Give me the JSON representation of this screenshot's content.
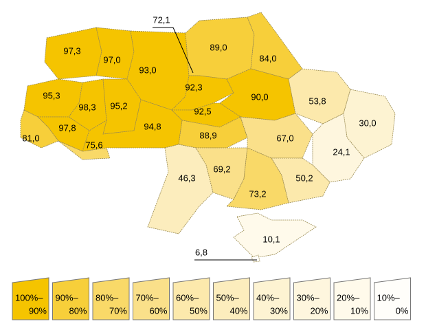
{
  "map": {
    "regions": [
      {
        "label": "97,3",
        "color": "#f5c400"
      },
      {
        "label": "97,0",
        "color": "#f5c400"
      },
      {
        "label": "93,0",
        "color": "#f5c400"
      },
      {
        "label": "89,0",
        "color": "#f7cf3a"
      },
      {
        "label": "84,0",
        "color": "#f7cf3a"
      },
      {
        "label": "95,3",
        "color": "#f5c400"
      },
      {
        "label": "98,3",
        "color": "#f5c400"
      },
      {
        "label": "95,2",
        "color": "#f5c400"
      },
      {
        "label": "92,3",
        "color": "#f5c400"
      },
      {
        "label": "90,0",
        "color": "#f5c400"
      },
      {
        "label": "53,8",
        "color": "#fce9ac"
      },
      {
        "label": "30,0",
        "color": "#fdf3d2"
      },
      {
        "label": "97,8",
        "color": "#f5c400"
      },
      {
        "label": "81,0",
        "color": "#f7cf3a"
      },
      {
        "label": "75,6",
        "color": "#f9d968"
      },
      {
        "label": "94,8",
        "color": "#f5c400"
      },
      {
        "label": "92,5",
        "color": "#f5c400"
      },
      {
        "label": "88,9",
        "color": "#f7cf3a"
      },
      {
        "label": "67,0",
        "color": "#fae08a"
      },
      {
        "label": "24,1",
        "color": "#fef6de"
      },
      {
        "label": "69,2",
        "color": "#fae08a"
      },
      {
        "label": "46,3",
        "color": "#fcedbd"
      },
      {
        "label": "50,2",
        "color": "#fce9ac"
      },
      {
        "label": "73,2",
        "color": "#f9d968"
      },
      {
        "label": "10,1",
        "color": "#fffaeb"
      }
    ],
    "callouts": [
      {
        "label": "72,1"
      },
      {
        "label": "6,8"
      }
    ],
    "legend": [
      {
        "top": "100%–",
        "bottom": "90%",
        "color": "#f5c400"
      },
      {
        "top": "90%–",
        "bottom": "80%",
        "color": "#f7cf3a"
      },
      {
        "top": "80%–",
        "bottom": "70%",
        "color": "#f9d968"
      },
      {
        "top": "70%–",
        "bottom": "60%",
        "color": "#fae08a"
      },
      {
        "top": "60%–",
        "bottom": "50%",
        "color": "#fce9ac"
      },
      {
        "top": "50%–",
        "bottom": "40%",
        "color": "#fcedbd"
      },
      {
        "top": "40%–",
        "bottom": "30%",
        "color": "#fdf3d2"
      },
      {
        "top": "30%–",
        "bottom": "20%",
        "color": "#fef6de"
      },
      {
        "top": "20%–",
        "bottom": "10%",
        "color": "#fffaeb"
      },
      {
        "top": "10%–",
        "bottom": "0%",
        "color": "#fffefa"
      }
    ]
  }
}
